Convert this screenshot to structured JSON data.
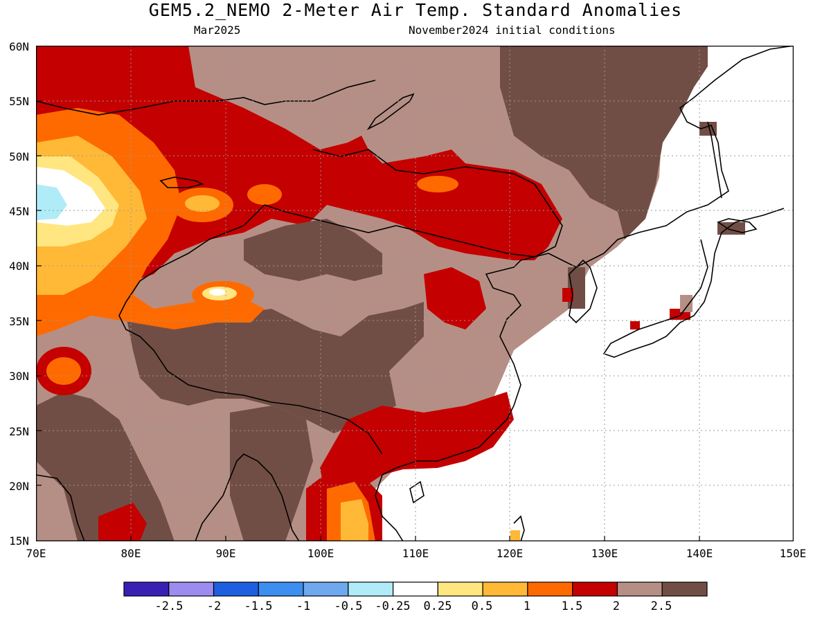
{
  "header": {
    "title": "GEM5.2_NEMO 2-Meter Air Temp. Standard Anomalies",
    "valid_month": "Mar2025",
    "init_conditions": "November2024 initial conditions"
  },
  "axes": {
    "lat_labels": [
      "60N",
      "55N",
      "50N",
      "45N",
      "40N",
      "35N",
      "30N",
      "25N",
      "20N",
      "15N"
    ],
    "lon_labels": [
      "70E",
      "80E",
      "90E",
      "100E",
      "110E",
      "120E",
      "130E",
      "140E",
      "150E"
    ],
    "lat_range": [
      15,
      60
    ],
    "lon_range": [
      70,
      150
    ],
    "grid": "dotted"
  },
  "legend": {
    "labels": [
      "-2.5",
      "-2",
      "-1.5",
      "-1",
      "-0.5",
      "-0.25",
      "0.25",
      "0.5",
      "1",
      "1.5",
      "2",
      "2.5"
    ],
    "colors": [
      "#3a1fb4",
      "#9c8cf0",
      "#1d5fe0",
      "#3c8ff0",
      "#6ea8ee",
      "#b0ecf8",
      "#ffffff",
      "#ffe680",
      "#ffb937",
      "#ff6a00",
      "#c40000",
      "#b58f85",
      "#714e45"
    ]
  },
  "map_colors": {
    "ocean": "#ffffff",
    "coastline": "#000000"
  }
}
